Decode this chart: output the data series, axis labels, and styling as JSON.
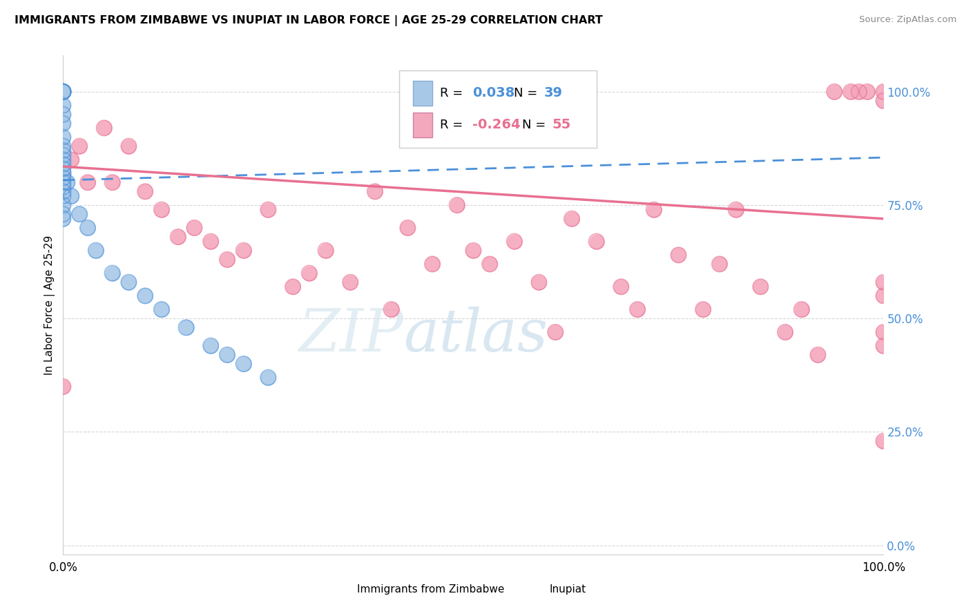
{
  "title": "IMMIGRANTS FROM ZIMBABWE VS INUPIAT IN LABOR FORCE | AGE 25-29 CORRELATION CHART",
  "source": "Source: ZipAtlas.com",
  "ylabel": "In Labor Force | Age 25-29",
  "ytick_labels": [
    "0.0%",
    "25.0%",
    "50.0%",
    "75.0%",
    "100.0%"
  ],
  "ytick_values": [
    0.0,
    0.25,
    0.5,
    0.75,
    1.0
  ],
  "xlim": [
    0.0,
    1.0
  ],
  "ylim": [
    -0.02,
    1.08
  ],
  "watermark_zip": "ZIP",
  "watermark_atlas": "atlas",
  "legend_zim_R": "0.038",
  "legend_zim_N": "39",
  "legend_inp_R": "-0.264",
  "legend_inp_N": "55",
  "zim_color": "#a8c8e8",
  "inp_color": "#f4a8be",
  "zim_line_color": "#4a90d9",
  "inp_line_color": "#e87090",
  "zimbabwe_x": [
    0.0,
    0.0,
    0.0,
    0.0,
    0.0,
    0.0,
    0.0,
    0.0,
    0.0,
    0.0,
    0.0,
    0.0,
    0.0,
    0.0,
    0.0,
    0.0,
    0.0,
    0.0,
    0.0,
    0.0,
    0.0,
    0.0,
    0.0,
    0.0,
    0.0,
    0.005,
    0.01,
    0.02,
    0.03,
    0.04,
    0.06,
    0.08,
    0.1,
    0.12,
    0.15,
    0.18,
    0.2,
    0.22,
    0.25
  ],
  "zimbabwe_y": [
    1.0,
    1.0,
    1.0,
    1.0,
    1.0,
    1.0,
    0.97,
    0.95,
    0.93,
    0.9,
    0.88,
    0.87,
    0.86,
    0.85,
    0.84,
    0.83,
    0.82,
    0.81,
    0.8,
    0.79,
    0.78,
    0.77,
    0.75,
    0.73,
    0.72,
    0.8,
    0.77,
    0.73,
    0.7,
    0.65,
    0.6,
    0.58,
    0.55,
    0.52,
    0.48,
    0.44,
    0.42,
    0.4,
    0.37
  ],
  "inupiat_x": [
    0.0,
    0.0,
    0.0,
    0.01,
    0.02,
    0.03,
    0.05,
    0.06,
    0.08,
    0.1,
    0.12,
    0.14,
    0.16,
    0.18,
    0.2,
    0.22,
    0.25,
    0.28,
    0.3,
    0.32,
    0.35,
    0.38,
    0.4,
    0.42,
    0.45,
    0.48,
    0.5,
    0.52,
    0.55,
    0.58,
    0.6,
    0.62,
    0.65,
    0.68,
    0.7,
    0.72,
    0.75,
    0.78,
    0.8,
    0.82,
    0.85,
    0.88,
    0.9,
    0.92,
    0.94,
    0.96,
    0.97,
    0.98,
    1.0,
    1.0,
    1.0,
    1.0,
    1.0,
    1.0,
    1.0
  ],
  "inupiat_y": [
    0.35,
    0.82,
    0.78,
    0.85,
    0.88,
    0.8,
    0.92,
    0.8,
    0.88,
    0.78,
    0.74,
    0.68,
    0.7,
    0.67,
    0.63,
    0.65,
    0.74,
    0.57,
    0.6,
    0.65,
    0.58,
    0.78,
    0.52,
    0.7,
    0.62,
    0.75,
    0.65,
    0.62,
    0.67,
    0.58,
    0.47,
    0.72,
    0.67,
    0.57,
    0.52,
    0.74,
    0.64,
    0.52,
    0.62,
    0.74,
    0.57,
    0.47,
    0.52,
    0.42,
    1.0,
    1.0,
    1.0,
    1.0,
    1.0,
    0.98,
    0.58,
    0.47,
    0.44,
    0.23,
    0.55
  ]
}
